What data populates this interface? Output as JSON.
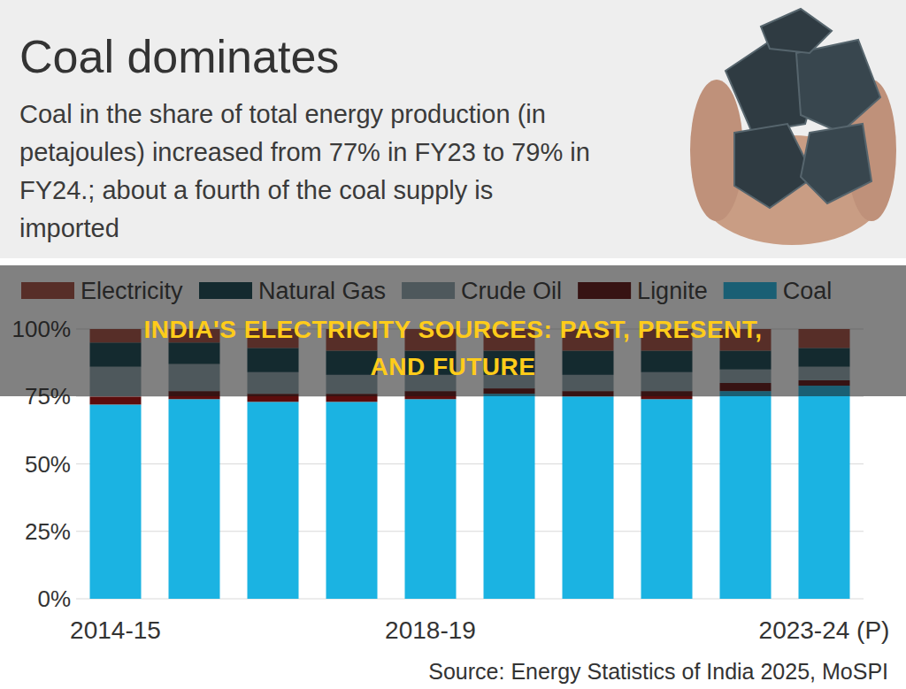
{
  "chart_data": {
    "type": "bar",
    "title": "Coal dominates",
    "subtitle": "Coal in the share of total energy production (in petajoules) increased from 77% in FY23 to 79% in FY24.; about a fourth of the coal supply is imported",
    "annotations": [
      "INDIA'S ELECTRICITY SOURCES: PAST, PRESENT, AND FUTURE",
      "Source: Energy Statistics of India 2025, MoSPI"
    ],
    "categories": [
      "2014-15",
      null,
      null,
      null,
      "2018-19",
      null,
      null,
      null,
      null,
      "2023-24 (P)"
    ],
    "series": [
      {
        "name": "Electricity",
        "color": "#a3473b",
        "values": [
          5,
          5,
          7,
          8,
          8,
          8,
          8,
          8,
          8,
          7
        ]
      },
      {
        "name": "Natural Gas",
        "color": "#0f3e4b",
        "values": [
          9,
          8,
          9,
          9,
          9,
          9,
          9,
          8,
          7,
          7
        ]
      },
      {
        "name": "Crude Oil",
        "color": "#8ea4ad",
        "values": [
          11,
          10,
          8,
          7,
          6,
          5,
          6,
          7,
          5,
          5
        ]
      },
      {
        "name": "Lignite",
        "color": "#5c0d0d",
        "values": [
          3,
          3,
          3,
          3,
          3,
          2,
          2,
          3,
          3,
          2
        ]
      },
      {
        "name": "Coal",
        "color": "#1bb3e2",
        "values": [
          72,
          74,
          73,
          73,
          74,
          76,
          75,
          74,
          77,
          79
        ]
      }
    ],
    "stacked": true,
    "legend": "top",
    "grid": true,
    "ylim": [
      0,
      100
    ],
    "yticks": [
      {
        "value": 0,
        "label": "0%"
      },
      {
        "value": 25,
        "label": "25%"
      },
      {
        "value": 50,
        "label": "50%"
      },
      {
        "value": 75,
        "label": "75%"
      },
      {
        "value": 100,
        "label": "100%"
      }
    ]
  }
}
